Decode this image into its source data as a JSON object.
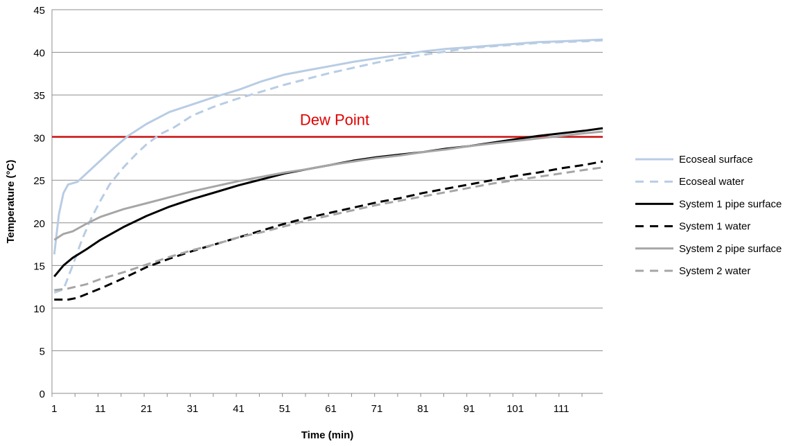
{
  "chart_data": {
    "type": "line",
    "title": "",
    "xlabel": "Time (min)",
    "ylabel": "Temperature (°C)",
    "xlim": [
      1,
      120
    ],
    "ylim": [
      0,
      45
    ],
    "x_ticks": [
      1,
      11,
      21,
      31,
      41,
      51,
      61,
      71,
      81,
      91,
      101,
      111
    ],
    "x_tick_labels": [
      "1",
      "11",
      "21",
      "31",
      "41",
      "51",
      "61",
      "71",
      "81",
      "91",
      "101",
      "111"
    ],
    "y_ticks": [
      0,
      5,
      10,
      15,
      20,
      25,
      30,
      35,
      40,
      45
    ],
    "y_tick_labels": [
      "0",
      "5",
      "10",
      "15",
      "20",
      "25",
      "30",
      "35",
      "40",
      "45"
    ],
    "grid": "horizontal",
    "legend_position": "right",
    "reference_line": {
      "label": "Dew Point",
      "y": 30.1,
      "color": "#e00000"
    },
    "series": [
      {
        "name": "Ecoseal surface",
        "color": "#b8cce4",
        "dash": "solid",
        "points": [
          [
            1,
            16.3
          ],
          [
            2,
            21.0
          ],
          [
            3,
            23.5
          ],
          [
            4,
            24.5
          ],
          [
            6,
            24.8
          ],
          [
            8,
            25.8
          ],
          [
            11,
            27.3
          ],
          [
            14,
            28.8
          ],
          [
            17,
            30.2
          ],
          [
            21,
            31.6
          ],
          [
            26,
            33.0
          ],
          [
            31,
            33.9
          ],
          [
            36,
            34.8
          ],
          [
            41,
            35.6
          ],
          [
            46,
            36.6
          ],
          [
            51,
            37.4
          ],
          [
            56,
            37.9
          ],
          [
            61,
            38.4
          ],
          [
            66,
            38.9
          ],
          [
            71,
            39.3
          ],
          [
            76,
            39.7
          ],
          [
            81,
            40.1
          ],
          [
            86,
            40.4
          ],
          [
            91,
            40.6
          ],
          [
            96,
            40.8
          ],
          [
            101,
            41.0
          ],
          [
            106,
            41.2
          ],
          [
            111,
            41.3
          ],
          [
            116,
            41.4
          ],
          [
            120,
            41.5
          ]
        ]
      },
      {
        "name": "Ecoseal water",
        "color": "#b8cce4",
        "dash": "dashed",
        "points": [
          [
            1,
            11.8
          ],
          [
            3,
            12.2
          ],
          [
            5,
            15.0
          ],
          [
            7,
            18.0
          ],
          [
            9,
            20.5
          ],
          [
            11,
            22.6
          ],
          [
            13,
            24.5
          ],
          [
            16,
            26.5
          ],
          [
            19,
            28.2
          ],
          [
            21,
            29.2
          ],
          [
            24,
            30.4
          ],
          [
            27,
            31.2
          ],
          [
            31,
            32.6
          ],
          [
            36,
            33.7
          ],
          [
            41,
            34.6
          ],
          [
            46,
            35.4
          ],
          [
            51,
            36.2
          ],
          [
            56,
            36.9
          ],
          [
            61,
            37.6
          ],
          [
            66,
            38.2
          ],
          [
            71,
            38.8
          ],
          [
            76,
            39.3
          ],
          [
            81,
            39.7
          ],
          [
            86,
            40.1
          ],
          [
            91,
            40.5
          ],
          [
            96,
            40.7
          ],
          [
            101,
            40.9
          ],
          [
            106,
            41.1
          ],
          [
            111,
            41.2
          ],
          [
            116,
            41.3
          ],
          [
            120,
            41.4
          ]
        ]
      },
      {
        "name": "System 1 pipe surface",
        "color": "#000000",
        "dash": "solid",
        "points": [
          [
            1,
            13.7
          ],
          [
            3,
            15.0
          ],
          [
            5,
            15.9
          ],
          [
            8,
            16.9
          ],
          [
            11,
            18.0
          ],
          [
            16,
            19.5
          ],
          [
            21,
            20.8
          ],
          [
            26,
            21.9
          ],
          [
            31,
            22.8
          ],
          [
            36,
            23.6
          ],
          [
            41,
            24.4
          ],
          [
            46,
            25.1
          ],
          [
            51,
            25.8
          ],
          [
            56,
            26.3
          ],
          [
            61,
            26.8
          ],
          [
            66,
            27.3
          ],
          [
            71,
            27.7
          ],
          [
            76,
            28.0
          ],
          [
            81,
            28.3
          ],
          [
            86,
            28.7
          ],
          [
            91,
            29.0
          ],
          [
            96,
            29.4
          ],
          [
            101,
            29.8
          ],
          [
            106,
            30.2
          ],
          [
            111,
            30.5
          ],
          [
            116,
            30.8
          ],
          [
            120,
            31.1
          ]
        ]
      },
      {
        "name": "System 1 water",
        "color": "#000000",
        "dash": "dashed",
        "points": [
          [
            1,
            11.0
          ],
          [
            4,
            11.0
          ],
          [
            6,
            11.2
          ],
          [
            11,
            12.3
          ],
          [
            16,
            13.5
          ],
          [
            21,
            14.8
          ],
          [
            26,
            15.8
          ],
          [
            31,
            16.7
          ],
          [
            36,
            17.5
          ],
          [
            41,
            18.3
          ],
          [
            46,
            19.1
          ],
          [
            51,
            19.9
          ],
          [
            56,
            20.6
          ],
          [
            61,
            21.2
          ],
          [
            66,
            21.8
          ],
          [
            71,
            22.4
          ],
          [
            76,
            22.9
          ],
          [
            81,
            23.5
          ],
          [
            86,
            24.0
          ],
          [
            91,
            24.5
          ],
          [
            96,
            25.0
          ],
          [
            101,
            25.5
          ],
          [
            106,
            25.9
          ],
          [
            111,
            26.4
          ],
          [
            116,
            26.8
          ],
          [
            120,
            27.2
          ]
        ]
      },
      {
        "name": "System 2 pipe surface",
        "color": "#a6a6a6",
        "dash": "solid",
        "points": [
          [
            1,
            18.0
          ],
          [
            3,
            18.7
          ],
          [
            5,
            19.0
          ],
          [
            8,
            19.9
          ],
          [
            11,
            20.7
          ],
          [
            16,
            21.6
          ],
          [
            21,
            22.3
          ],
          [
            26,
            23.0
          ],
          [
            31,
            23.7
          ],
          [
            36,
            24.3
          ],
          [
            41,
            24.9
          ],
          [
            46,
            25.4
          ],
          [
            51,
            25.9
          ],
          [
            56,
            26.3
          ],
          [
            61,
            26.8
          ],
          [
            66,
            27.2
          ],
          [
            71,
            27.6
          ],
          [
            76,
            27.9
          ],
          [
            81,
            28.3
          ],
          [
            86,
            28.6
          ],
          [
            91,
            29.0
          ],
          [
            96,
            29.3
          ],
          [
            101,
            29.6
          ],
          [
            106,
            29.9
          ],
          [
            111,
            30.2
          ],
          [
            116,
            30.5
          ],
          [
            120,
            30.7
          ]
        ]
      },
      {
        "name": "System 2 water",
        "color": "#a6a6a6",
        "dash": "dashed",
        "points": [
          [
            1,
            12.1
          ],
          [
            4,
            12.3
          ],
          [
            8,
            12.8
          ],
          [
            11,
            13.4
          ],
          [
            16,
            14.2
          ],
          [
            21,
            15.1
          ],
          [
            26,
            16.0
          ],
          [
            31,
            16.8
          ],
          [
            36,
            17.5
          ],
          [
            41,
            18.3
          ],
          [
            46,
            18.9
          ],
          [
            51,
            19.6
          ],
          [
            56,
            20.3
          ],
          [
            61,
            20.9
          ],
          [
            66,
            21.5
          ],
          [
            71,
            22.1
          ],
          [
            76,
            22.6
          ],
          [
            81,
            23.1
          ],
          [
            86,
            23.6
          ],
          [
            91,
            24.1
          ],
          [
            96,
            24.6
          ],
          [
            101,
            25.0
          ],
          [
            106,
            25.4
          ],
          [
            111,
            25.8
          ],
          [
            116,
            26.2
          ],
          [
            120,
            26.5
          ]
        ]
      }
    ]
  }
}
